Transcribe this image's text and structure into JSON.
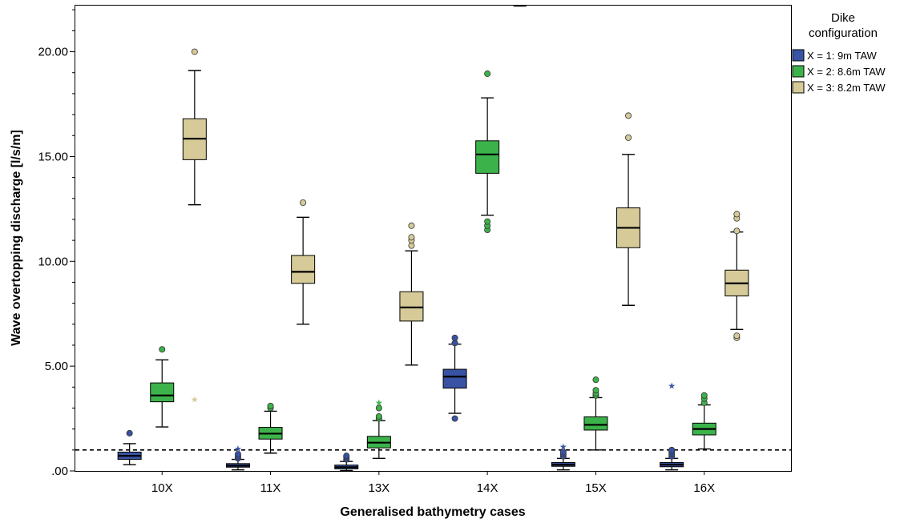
{
  "chart_data": {
    "type": "boxplot",
    "xlabel": "Generalised bathymetry cases",
    "ylabel": "Wave overtopping discharge [l/s/m]",
    "ylim": [
      0,
      22.2
    ],
    "yticks": [
      {
        "value": 0,
        "label": ".00"
      },
      {
        "value": 5,
        "label": "5.00"
      },
      {
        "value": 10,
        "label": "10.00"
      },
      {
        "value": 15,
        "label": "15.00"
      },
      {
        "value": 20,
        "label": "20.00"
      }
    ],
    "categories": [
      "10X",
      "11X",
      "13X",
      "14X",
      "15X",
      "16X"
    ],
    "reference_line": 1.0,
    "grid": false,
    "legend": {
      "title_lines": [
        "Dike",
        "configuration"
      ],
      "position": "right"
    },
    "series": [
      {
        "name": "X = 1: 9m TAW",
        "color": "#3853a4",
        "boxes": [
          {
            "category": "10X",
            "whisker_low": 0.3,
            "q1": 0.55,
            "median": 0.72,
            "q3": 0.9,
            "whisker_high": 1.3,
            "outliers": [
              1.8
            ],
            "extremes": []
          },
          {
            "category": "11X",
            "whisker_low": 0.05,
            "q1": 0.18,
            "median": 0.25,
            "q3": 0.35,
            "whisker_high": 0.55,
            "outliers": [
              0.6,
              0.7,
              0.8
            ],
            "extremes": [
              1.1
            ]
          },
          {
            "category": "13X",
            "whisker_low": 0.02,
            "q1": 0.1,
            "median": 0.18,
            "q3": 0.28,
            "whisker_high": 0.45,
            "outliers": [
              0.55,
              0.65,
              0.72
            ],
            "extremes": []
          },
          {
            "category": "14X",
            "whisker_low": 2.75,
            "q1": 3.95,
            "median": 4.5,
            "q3": 4.85,
            "whisker_high": 6.05,
            "outliers": [
              2.5,
              6.1,
              6.35
            ],
            "extremes": []
          },
          {
            "category": "15X",
            "whisker_low": 0.05,
            "q1": 0.22,
            "median": 0.3,
            "q3": 0.4,
            "whisker_high": 0.6,
            "outliers": [
              0.7,
              0.8,
              0.9
            ],
            "extremes": [
              1.2
            ]
          },
          {
            "category": "16X",
            "whisker_low": 0.05,
            "q1": 0.2,
            "median": 0.3,
            "q3": 0.4,
            "whisker_high": 0.6,
            "outliers": [
              0.7,
              0.8,
              0.9,
              1.0
            ],
            "extremes": [
              4.1
            ]
          }
        ]
      },
      {
        "name": "X = 2: 8.6m TAW",
        "color": "#3cb34a",
        "boxes": [
          {
            "category": "10X",
            "whisker_low": 2.1,
            "q1": 3.3,
            "median": 3.6,
            "q3": 4.2,
            "whisker_high": 5.3,
            "outliers": [
              5.8
            ],
            "extremes": []
          },
          {
            "category": "11X",
            "whisker_low": 0.85,
            "q1": 1.52,
            "median": 1.78,
            "q3": 2.08,
            "whisker_high": 2.85,
            "outliers": [
              3.0,
              3.1
            ],
            "extremes": []
          },
          {
            "category": "13X",
            "whisker_low": 0.6,
            "q1": 1.1,
            "median": 1.35,
            "q3": 1.65,
            "whisker_high": 2.4,
            "outliers": [
              2.5,
              2.6,
              3.0
            ],
            "extremes": [
              3.3
            ]
          },
          {
            "category": "14X",
            "whisker_low": 12.2,
            "q1": 14.2,
            "median": 15.1,
            "q3": 15.75,
            "whisker_high": 17.8,
            "outliers": [
              11.5,
              11.7,
              11.9,
              18.95
            ],
            "extremes": []
          },
          {
            "category": "15X",
            "whisker_low": 1.0,
            "q1": 1.95,
            "median": 2.2,
            "q3": 2.58,
            "whisker_high": 3.5,
            "outliers": [
              3.6,
              3.7,
              3.85,
              4.35
            ],
            "extremes": []
          },
          {
            "category": "16X",
            "whisker_low": 1.05,
            "q1": 1.72,
            "median": 2.0,
            "q3": 2.28,
            "whisker_high": 3.15,
            "outliers": [
              3.25,
              3.45,
              3.6
            ],
            "extremes": []
          }
        ]
      },
      {
        "name": "X = 3: 8.2m TAW",
        "color": "#d6cb98",
        "boxes": [
          {
            "category": "10X",
            "whisker_low": 12.7,
            "q1": 14.85,
            "median": 15.85,
            "q3": 16.8,
            "whisker_high": 19.1,
            "outliers": [
              20.0
            ],
            "extremes": [
              3.45
            ]
          },
          {
            "category": "11X",
            "whisker_low": 7.0,
            "q1": 8.95,
            "median": 9.5,
            "q3": 10.28,
            "whisker_high": 12.1,
            "outliers": [
              12.8
            ],
            "extremes": []
          },
          {
            "category": "13X",
            "whisker_low": 5.05,
            "q1": 7.15,
            "median": 7.8,
            "q3": 8.55,
            "whisker_high": 10.5,
            "outliers": [
              10.75,
              11.0,
              11.15,
              11.7
            ],
            "extremes": []
          },
          {
            "category": "14X",
            "whisker_low": null,
            "q1": null,
            "median": null,
            "q3": null,
            "whisker_high": 22.2,
            "outliers": [],
            "extremes": []
          },
          {
            "category": "15X",
            "whisker_low": 7.9,
            "q1": 10.65,
            "median": 11.6,
            "q3": 12.55,
            "whisker_high": 15.1,
            "outliers": [
              15.9,
              16.95
            ],
            "extremes": []
          },
          {
            "category": "16X",
            "whisker_low": 6.75,
            "q1": 8.35,
            "median": 8.95,
            "q3": 9.58,
            "whisker_high": 11.4,
            "outliers": [
              6.35,
              6.45,
              11.45,
              12.05,
              12.25
            ],
            "extremes": []
          }
        ]
      }
    ]
  }
}
